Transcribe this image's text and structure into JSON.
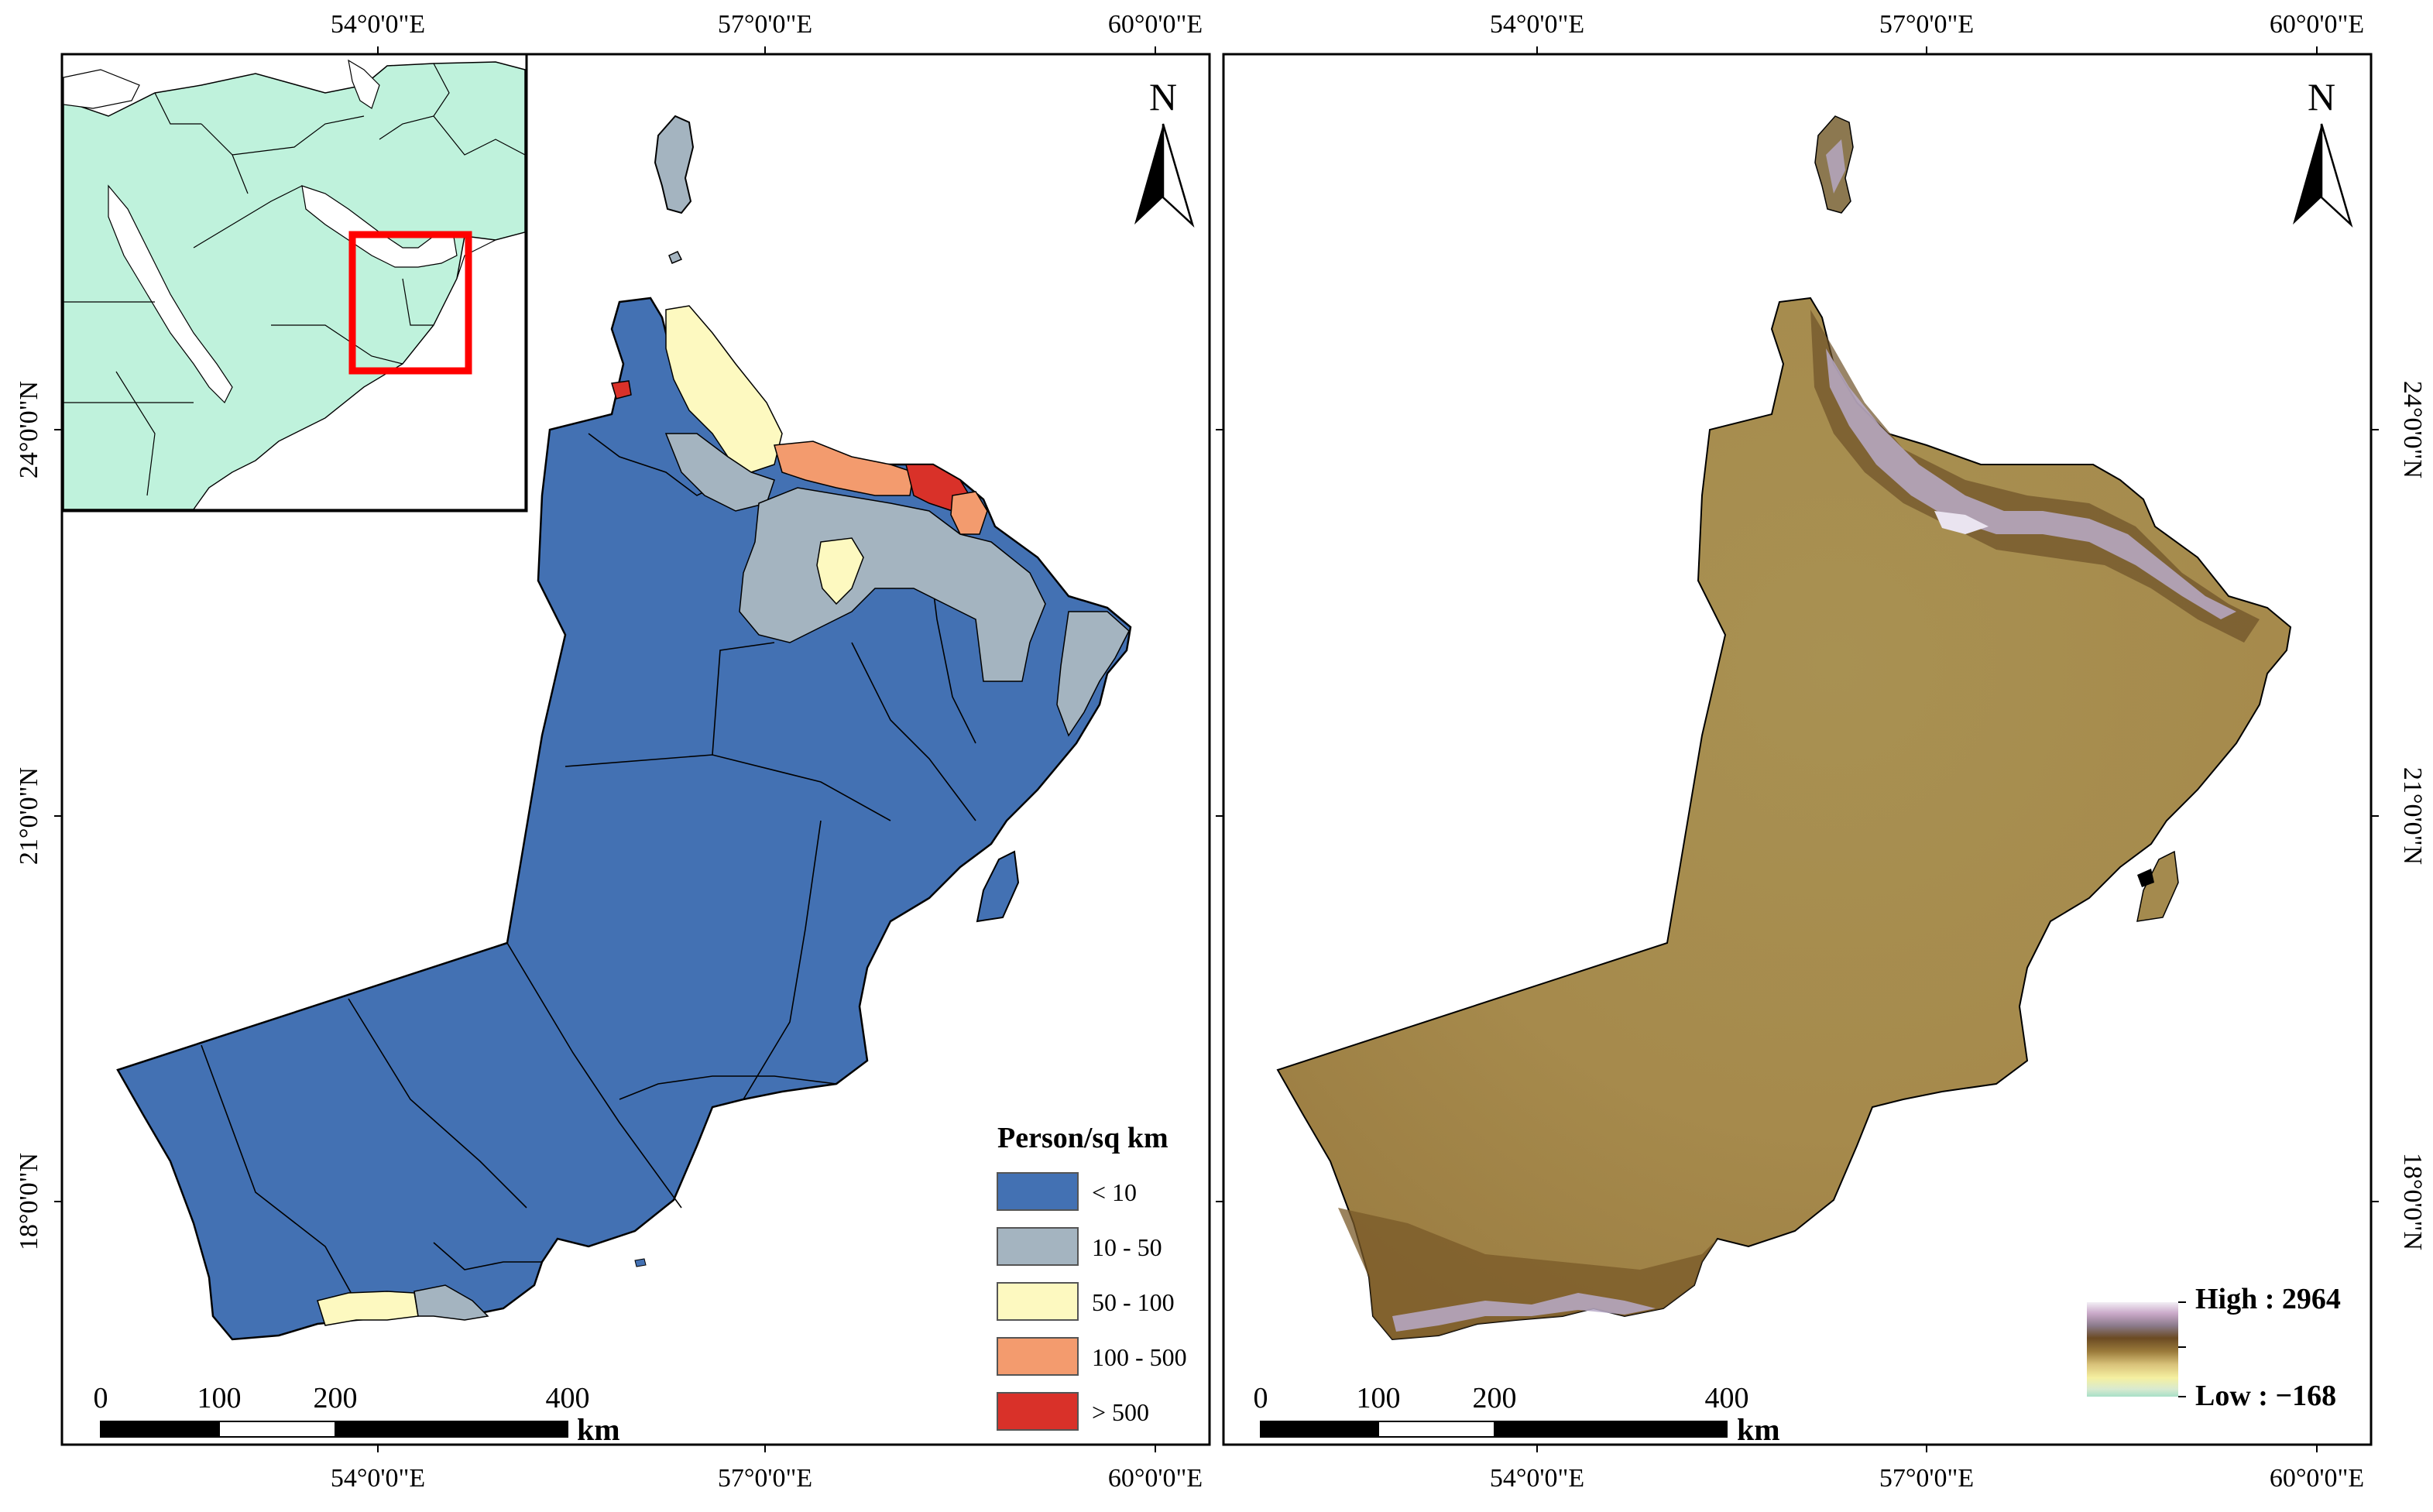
{
  "panels": [
    {
      "id": "population-density",
      "top_axis_labels": [
        "54°0'0\"E",
        "57°0'0\"E",
        "60°0'0\"E"
      ],
      "bottom_axis_labels": [
        "54°0'0\"E",
        "57°0'0\"E",
        "60°0'0\"E"
      ],
      "side_axis_labels": [
        "24°0'0\"N",
        "21°0'0\"N",
        "18°0'0\"N"
      ],
      "north_label": "N",
      "scale": {
        "ticks": [
          "0",
          "100",
          "200",
          "400"
        ],
        "unit": "km"
      },
      "legend": {
        "title": "Person/sq km",
        "items": [
          {
            "label": "< 10",
            "color": "#4371b3"
          },
          {
            "label": "10 - 50",
            "color": "#a4b4c0"
          },
          {
            "label": "50 - 100",
            "color": "#fdf9c0"
          },
          {
            "label": "100 - 500",
            "color": "#f39b6e"
          },
          {
            "label": "> 500",
            "color": "#d93129"
          }
        ]
      }
    },
    {
      "id": "elevation",
      "top_axis_labels": [
        "54°0'0\"E",
        "57°0'0\"E",
        "60°0'0\"E"
      ],
      "bottom_axis_labels": [
        "54°0'0\"E",
        "57°0'0\"E",
        "60°0'0\"E"
      ],
      "side_axis_labels": [
        "24°0'0\"N",
        "21°0'0\"N",
        "18°0'0\"N"
      ],
      "north_label": "N",
      "scale": {
        "ticks": [
          "0",
          "100",
          "200",
          "400"
        ],
        "unit": "km"
      },
      "legend": {
        "high_label": "High : 2964",
        "low_label": "Low : −168",
        "colors": [
          "#f2eef4",
          "#c9a8c8",
          "#8a7a8a",
          "#6b4a23",
          "#9a7a3a",
          "#d9c27a",
          "#f5f0a0",
          "#d8ead0",
          "#a8e0c8"
        ]
      }
    }
  ],
  "inset": {
    "land_color": "#bff2dc",
    "water_color": "#ffffff",
    "highlight_color": "#ff0000"
  },
  "colors": {
    "terrain_base": "#a48a4e",
    "terrain_dark": "#7a5a28",
    "mountain": "#b8aac8"
  }
}
